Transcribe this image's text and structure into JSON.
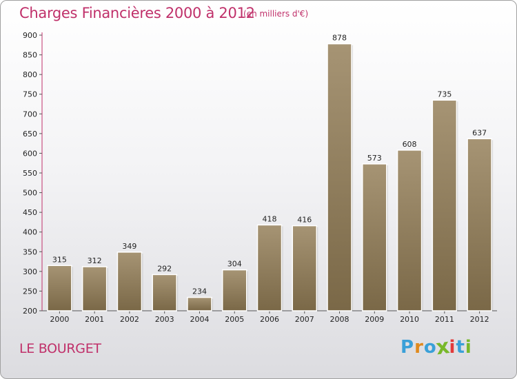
{
  "title": "Charges Financières 2000 à 2012",
  "subtitle": "(en milliers d'€)",
  "commune": "LE BOURGET",
  "logo": {
    "text": "Proxiti",
    "letters": [
      "P",
      "r",
      "o",
      "x",
      "i",
      "t",
      "i"
    ]
  },
  "colors": {
    "title": "#c0306a",
    "bar_top": "#a69474",
    "bar_bottom": "#7a6847",
    "logo": [
      "#3aa0d8",
      "#e08a1e",
      "#3aa0d8",
      "#78b82a",
      "#e23a3a",
      "#3aa0d8",
      "#78b82a"
    ]
  },
  "chart_data": {
    "type": "bar",
    "categories": [
      "2000",
      "2001",
      "2002",
      "2003",
      "2004",
      "2005",
      "2006",
      "2007",
      "2008",
      "2009",
      "2010",
      "2011",
      "2012"
    ],
    "values": [
      315,
      312,
      349,
      292,
      234,
      304,
      418,
      416,
      878,
      573,
      608,
      735,
      637
    ],
    "ylim": [
      200,
      900
    ],
    "yticks": [
      200,
      250,
      300,
      350,
      400,
      450,
      500,
      550,
      600,
      650,
      700,
      750,
      800,
      850,
      900
    ],
    "grid": false,
    "title": "Charges Financières 2000 à 2012",
    "xlabel": "",
    "ylabel": ""
  }
}
